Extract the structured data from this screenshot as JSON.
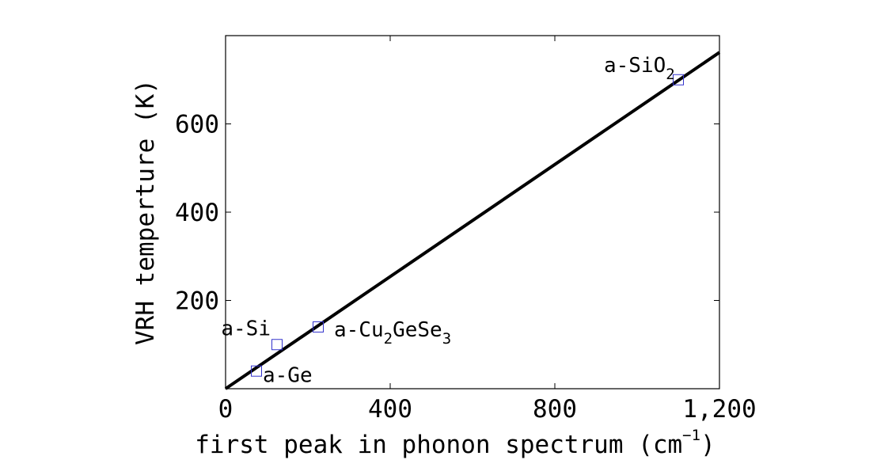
{
  "chart_data": {
    "type": "scatter",
    "title": "",
    "xlabel": "first peak in phonon spectrum (cm",
    "xlabel_sup": "−1",
    "xlabel_close": ")",
    "ylabel": "VRH temperture (K)",
    "xlim": [
      0,
      1200
    ],
    "ylim": [
      0,
      800
    ],
    "x_ticks": [
      0,
      400,
      800,
      1200
    ],
    "x_tick_labels": [
      "0",
      "400",
      "800",
      "1,200"
    ],
    "y_ticks": [
      200,
      400,
      600
    ],
    "y_tick_labels": [
      "200",
      "400",
      "600"
    ],
    "grid": false,
    "marker": "square",
    "marker_color": "#3333cc",
    "line_color": "#000000",
    "points": [
      {
        "x": 75,
        "y": 40,
        "label": "a-Ge",
        "label_parts": [
          {
            "t": "a-Ge"
          }
        ]
      },
      {
        "x": 125,
        "y": 100,
        "label": "a-Si",
        "label_parts": [
          {
            "t": "a-Si"
          }
        ]
      },
      {
        "x": 225,
        "y": 140,
        "label": "a-Cu2GeSe3",
        "label_parts": [
          {
            "t": "a-Cu"
          },
          {
            "t": "2",
            "sub": true
          },
          {
            "t": "GeSe"
          },
          {
            "t": "3",
            "sub": true
          }
        ]
      },
      {
        "x": 1100,
        "y": 700,
        "label": "a-SiO2",
        "label_parts": [
          {
            "t": "a-SiO"
          },
          {
            "t": "2",
            "sub": true
          }
        ]
      }
    ],
    "fit_line": {
      "x": [
        0,
        1200
      ],
      "y": [
        0,
        762
      ]
    }
  }
}
